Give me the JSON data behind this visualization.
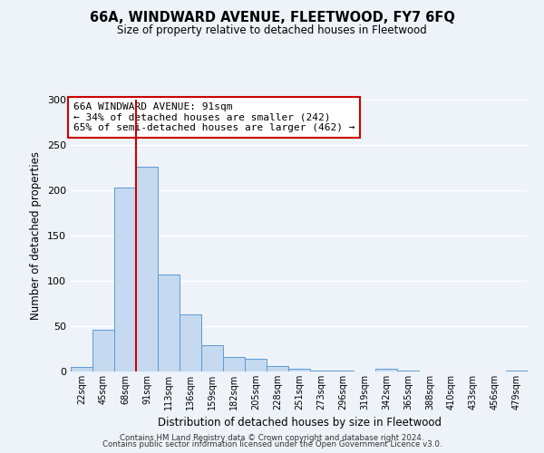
{
  "title": "66A, WINDWARD AVENUE, FLEETWOOD, FY7 6FQ",
  "subtitle": "Size of property relative to detached houses in Fleetwood",
  "xlabel": "Distribution of detached houses by size in Fleetwood",
  "ylabel": "Number of detached properties",
  "bin_labels": [
    "22sqm",
    "45sqm",
    "68sqm",
    "91sqm",
    "113sqm",
    "136sqm",
    "159sqm",
    "182sqm",
    "205sqm",
    "228sqm",
    "251sqm",
    "273sqm",
    "296sqm",
    "319sqm",
    "342sqm",
    "365sqm",
    "388sqm",
    "410sqm",
    "433sqm",
    "456sqm",
    "479sqm"
  ],
  "bar_values": [
    5,
    46,
    203,
    226,
    107,
    63,
    29,
    16,
    14,
    6,
    3,
    1,
    1,
    0,
    3,
    1,
    0,
    0,
    0,
    0,
    1
  ],
  "bar_color": "#c5d9f0",
  "bar_edge_color": "#5b9bd5",
  "property_bin_index": 3,
  "vline_color": "#cc0000",
  "annotation_title": "66A WINDWARD AVENUE: 91sqm",
  "annotation_line2": "← 34% of detached houses are smaller (242)",
  "annotation_line3": "65% of semi-detached houses are larger (462) →",
  "annotation_box_color": "#ffffff",
  "annotation_box_edge_color": "#cc0000",
  "ylim": [
    0,
    300
  ],
  "yticks": [
    0,
    50,
    100,
    150,
    200,
    250,
    300
  ],
  "background_color": "#eef2f9",
  "grid_color": "#ffffff",
  "footer_line1": "Contains HM Land Registry data © Crown copyright and database right 2024.",
  "footer_line2": "Contains public sector information licensed under the Open Government Licence v3.0."
}
